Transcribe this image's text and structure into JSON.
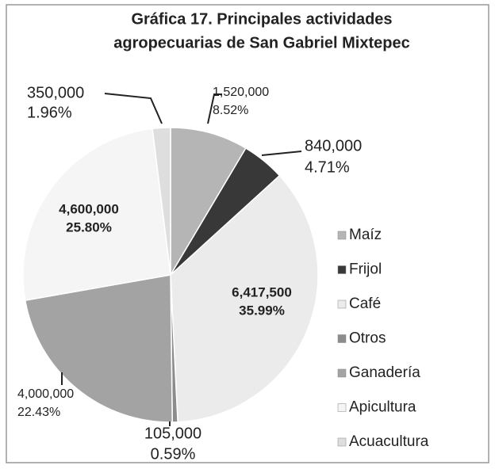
{
  "chart_data": {
    "type": "pie",
    "title": [
      "Gráfica 17. Principales actividades",
      "agropecuarias de San Gabriel Mixtepec"
    ],
    "categories": [
      "Maíz",
      "Frijol",
      "Café",
      "Otros",
      "Ganadería",
      "Apicultura",
      "Acuacultura"
    ],
    "values": [
      1520000,
      840000,
      6417500,
      105000,
      4000000,
      4600000,
      350000
    ],
    "value_labels": [
      "1,520,000",
      "840,000",
      "6,417,500",
      "105,000",
      "4,000,000",
      "4,600,000",
      "350,000"
    ],
    "percents": [
      8.52,
      4.71,
      35.99,
      0.59,
      22.43,
      25.8,
      1.96
    ],
    "percent_labels": [
      "8.52%",
      "4.71%",
      "35.99%",
      "0.59%",
      "22.43%",
      "25.80%",
      "1.96%"
    ],
    "colors": [
      "#b5b5b5",
      "#383838",
      "#ebebeb",
      "#8c8c8c",
      "#a3a3a3",
      "#f5f5f5",
      "#dedede"
    ],
    "legend": "right"
  }
}
